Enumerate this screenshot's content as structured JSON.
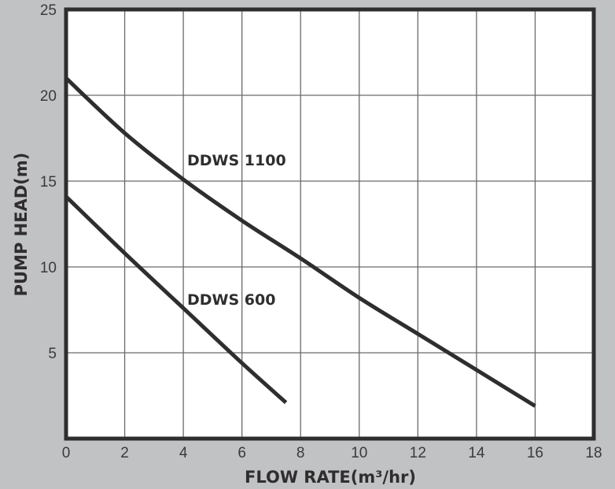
{
  "chart_data": {
    "type": "line",
    "title": "",
    "xlabel": "FLOW RATE(m³/hr)",
    "ylabel": "PUMP HEAD(m)",
    "xlim": [
      0,
      18
    ],
    "ylim": [
      0,
      25
    ],
    "xticks": [
      0,
      2,
      4,
      6,
      8,
      10,
      12,
      14,
      16,
      18
    ],
    "yticks": [
      5,
      10,
      15,
      20,
      25
    ],
    "grid": true,
    "colors": {
      "background": "#c1c2c4",
      "plot": "#ffffff",
      "line": "#2f2d2e",
      "grid": "#6a6a6a"
    },
    "series": [
      {
        "name": "DDWS 1100",
        "x": [
          0,
          2,
          4,
          6,
          8,
          10,
          12,
          14,
          16
        ],
        "y": [
          21,
          17.8,
          15.1,
          12.7,
          10.5,
          8.2,
          6.1,
          4.0,
          1.9
        ]
      },
      {
        "name": "DDWS 600",
        "x": [
          0,
          2,
          4,
          6,
          7.5
        ],
        "y": [
          14.1,
          10.8,
          7.6,
          4.4,
          2.1
        ]
      }
    ]
  }
}
